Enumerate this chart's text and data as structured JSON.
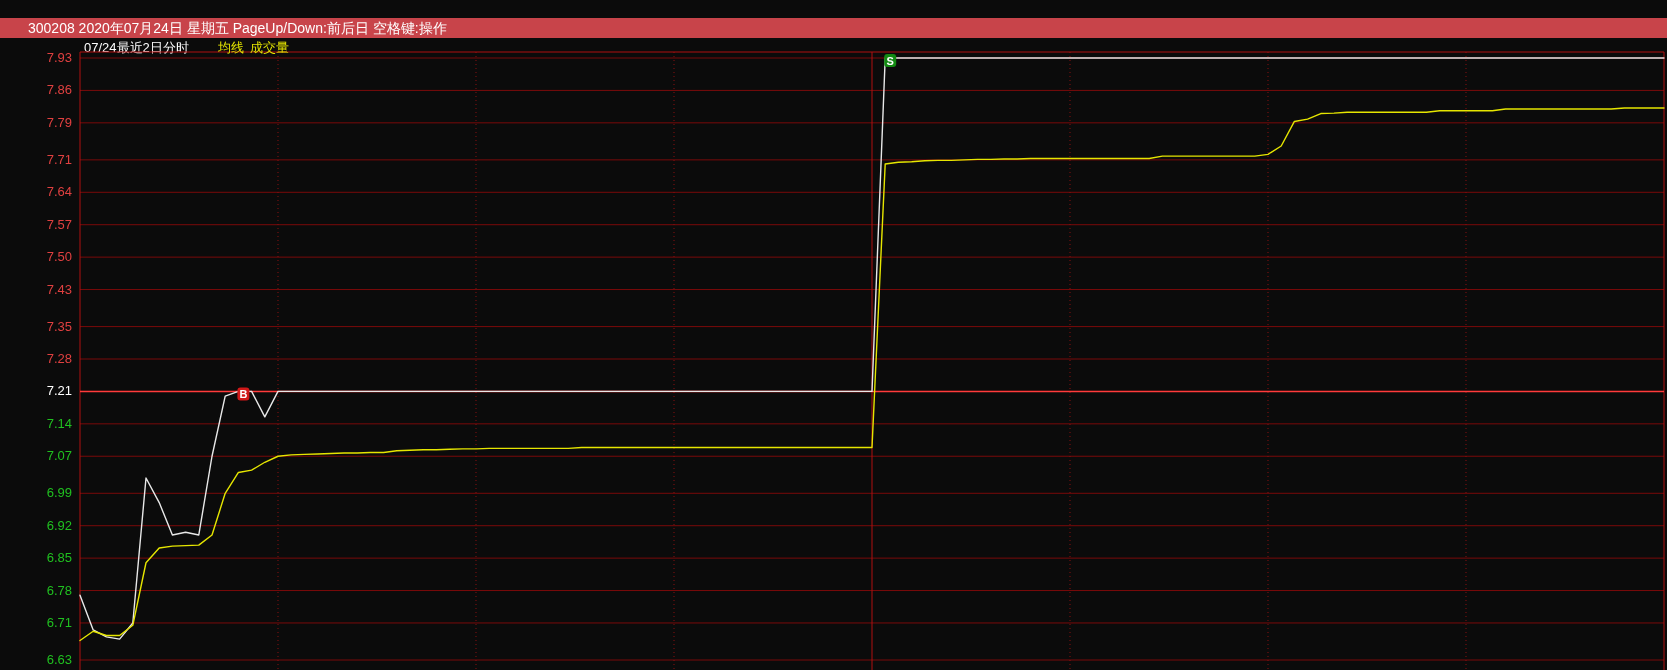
{
  "chart_data": {
    "type": "line",
    "title": "300208 2020年07月24日 星期五 PageUp/Down:前后日 空格键:操作",
    "subtitle": "07/24最近2日分时",
    "categories": [
      null,
      null,
      null,
      null,
      null,
      null,
      null,
      null,
      null,
      null,
      null,
      null,
      null,
      null,
      null,
      null,
      null,
      null,
      null,
      null,
      null,
      null,
      null,
      null,
      null,
      null,
      null,
      null,
      null,
      null,
      null,
      null,
      null,
      null,
      null,
      null,
      null,
      null,
      null,
      null,
      null,
      null,
      null,
      null,
      null,
      null,
      null,
      null,
      null,
      null,
      null,
      null,
      null,
      null,
      null,
      null,
      null,
      null,
      null,
      null,
      null,
      null,
      null,
      null,
      null,
      null,
      null,
      null,
      null,
      null,
      null,
      null,
      null,
      null,
      null,
      null,
      null,
      null,
      null,
      null,
      null,
      null,
      null,
      null,
      null,
      null,
      null,
      null,
      null,
      null,
      null,
      null,
      null,
      null,
      null,
      null,
      null,
      null,
      null,
      null,
      null,
      null,
      null,
      null,
      null,
      null,
      null,
      null,
      null,
      null,
      null,
      null,
      null,
      null,
      null,
      null,
      null,
      null,
      null,
      null,
      null
    ],
    "ylim": [
      6.63,
      7.93
    ],
    "yticks": [
      6.63,
      6.71,
      6.78,
      6.85,
      6.92,
      6.99,
      7.07,
      7.14,
      7.21,
      7.28,
      7.35,
      7.43,
      {
        "value": 7.5,
        "label": "7.50"
      },
      7.57,
      7.64,
      7.71,
      7.79,
      7.86,
      7.93
    ],
    "grid": true,
    "ref_lines": [
      {
        "axis": "y",
        "value": 7.21,
        "color": "#ff3b3b"
      }
    ],
    "series": [
      {
        "color": "#e8e8e8",
        "values": [
          6.77,
          6.695,
          6.68,
          6.675,
          6.71,
          7.023,
          6.97,
          6.9,
          6.906,
          6.9,
          7.07,
          7.2,
          7.21,
          7.21,
          7.155,
          7.21,
          7.21,
          7.21,
          7.21,
          7.21,
          7.21,
          7.21,
          7.21,
          7.21,
          7.21,
          7.21,
          7.21,
          7.21,
          7.21,
          7.21,
          7.21,
          7.21,
          7.21,
          7.21,
          7.21,
          7.21,
          7.21,
          7.21,
          7.21,
          7.21,
          7.21,
          7.21,
          7.21,
          7.21,
          7.21,
          7.21,
          7.21,
          7.21,
          7.21,
          7.21,
          7.21,
          7.21,
          7.21,
          7.21,
          7.21,
          7.21,
          7.21,
          7.21,
          7.21,
          7.21,
          7.21,
          7.93,
          7.93,
          7.93,
          7.93,
          7.93,
          7.93,
          7.93,
          7.93,
          7.93,
          7.93,
          7.93,
          7.93,
          7.93,
          7.93,
          7.93,
          7.93,
          7.93,
          7.93,
          7.93,
          7.93,
          7.93,
          7.93,
          7.93,
          7.93,
          7.93,
          7.93,
          7.93,
          7.93,
          7.93,
          7.93,
          7.93,
          7.93,
          7.93,
          7.93,
          7.93,
          7.93,
          7.93,
          7.93,
          7.93,
          7.93,
          7.93,
          7.93,
          7.93,
          7.93,
          7.93,
          7.93,
          7.93,
          7.93,
          7.93,
          7.93,
          7.93,
          7.93,
          7.93,
          7.93,
          7.93,
          7.93,
          7.93,
          7.93,
          7.93,
          7.93
        ]
      },
      {
        "name": "均线",
        "color": "#e6e600",
        "values": [
          6.672,
          6.692,
          6.683,
          6.683,
          6.705,
          6.84,
          6.872,
          6.876,
          6.877,
          6.878,
          6.9,
          6.99,
          7.035,
          7.04,
          7.057,
          7.07,
          7.073,
          7.074,
          7.075,
          7.076,
          7.077,
          7.077,
          7.078,
          7.078,
          7.082,
          7.083,
          7.084,
          7.084,
          7.085,
          7.086,
          7.086,
          7.087,
          7.087,
          7.087,
          7.087,
          7.087,
          7.087,
          7.087,
          7.089,
          7.089,
          7.089,
          7.089,
          7.089,
          7.089,
          7.089,
          7.089,
          7.089,
          7.089,
          7.089,
          7.089,
          7.089,
          7.089,
          7.089,
          7.089,
          7.089,
          7.089,
          7.089,
          7.089,
          7.089,
          7.089,
          7.089,
          7.701,
          7.705,
          7.706,
          7.708,
          7.709,
          7.709,
          7.71,
          7.711,
          7.711,
          7.712,
          7.712,
          7.713,
          7.713,
          7.713,
          7.713,
          7.713,
          7.713,
          7.713,
          7.713,
          7.713,
          7.713,
          7.718,
          7.718,
          7.718,
          7.718,
          7.718,
          7.718,
          7.718,
          7.718,
          7.722,
          7.74,
          7.793,
          7.798,
          7.81,
          7.811,
          7.813,
          7.813,
          7.813,
          7.813,
          7.813,
          7.813,
          7.813,
          7.816,
          7.816,
          7.816,
          7.816,
          7.816,
          7.82,
          7.82,
          7.82,
          7.82,
          7.82,
          7.82,
          7.82,
          7.82,
          7.82,
          7.822,
          7.822,
          7.822,
          7.822
        ]
      }
    ],
    "annotations": [
      "成交量",
      {
        "text": "B",
        "y": 7.21
      },
      {
        "text": "S",
        "y": 7.93
      }
    ]
  }
}
